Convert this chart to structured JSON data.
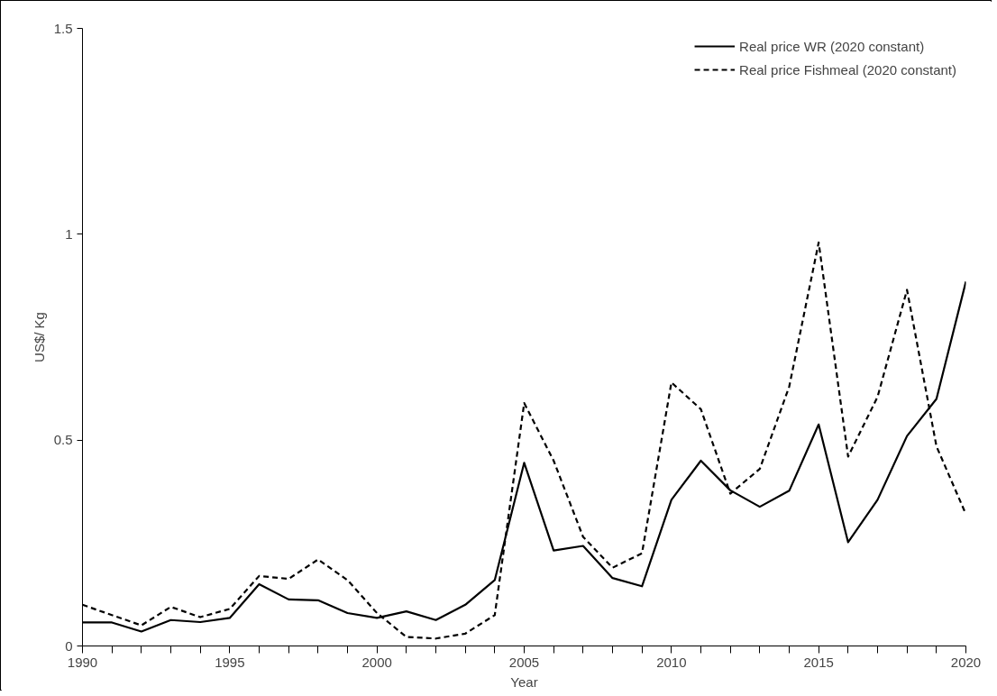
{
  "chart_data": {
    "type": "line",
    "xlabel": "Year",
    "ylabel": "US$/ Kg",
    "x": [
      1990,
      1991,
      1992,
      1993,
      1994,
      1995,
      1996,
      1997,
      1998,
      1999,
      2000,
      2001,
      2002,
      2003,
      2004,
      2005,
      2006,
      2007,
      2008,
      2009,
      2010,
      2011,
      2012,
      2013,
      2014,
      2015,
      2016,
      2017,
      2018,
      2019,
      2020
    ],
    "series": [
      {
        "name": "Real price WR (2020 constant)",
        "color": "#000000",
        "line_style": "solid",
        "values": [
          0.057,
          0.057,
          0.035,
          0.063,
          0.058,
          0.068,
          0.15,
          0.113,
          0.111,
          0.08,
          0.068,
          0.084,
          0.063,
          0.1,
          0.16,
          0.445,
          0.232,
          0.243,
          0.165,
          0.145,
          0.355,
          0.45,
          0.378,
          0.338,
          0.377,
          0.538,
          0.252,
          0.355,
          0.51,
          0.6,
          0.885
        ]
      },
      {
        "name": "Real price Fishmeal (2020 constant)",
        "color": "#000000",
        "line_style": "dashed",
        "values": [
          0.1,
          0.075,
          0.05,
          0.095,
          0.07,
          0.09,
          0.17,
          0.163,
          0.21,
          0.16,
          0.08,
          0.022,
          0.018,
          0.03,
          0.075,
          0.59,
          0.45,
          0.265,
          0.19,
          0.225,
          0.64,
          0.575,
          0.37,
          0.43,
          0.63,
          0.98,
          0.46,
          0.605,
          0.865,
          0.485,
          0.32
        ]
      }
    ],
    "xlim": [
      1990,
      2020
    ],
    "xticks": [
      1990,
      1995,
      2000,
      2005,
      2010,
      2015,
      2020
    ],
    "ylim": [
      0,
      1.5
    ],
    "yticks": [
      0,
      {
        "value": 0.5,
        "label": "0.5"
      },
      1,
      {
        "value": 1.5,
        "label": "1.5"
      }
    ],
    "grid": false,
    "legend": "top right",
    "marker": "none"
  }
}
